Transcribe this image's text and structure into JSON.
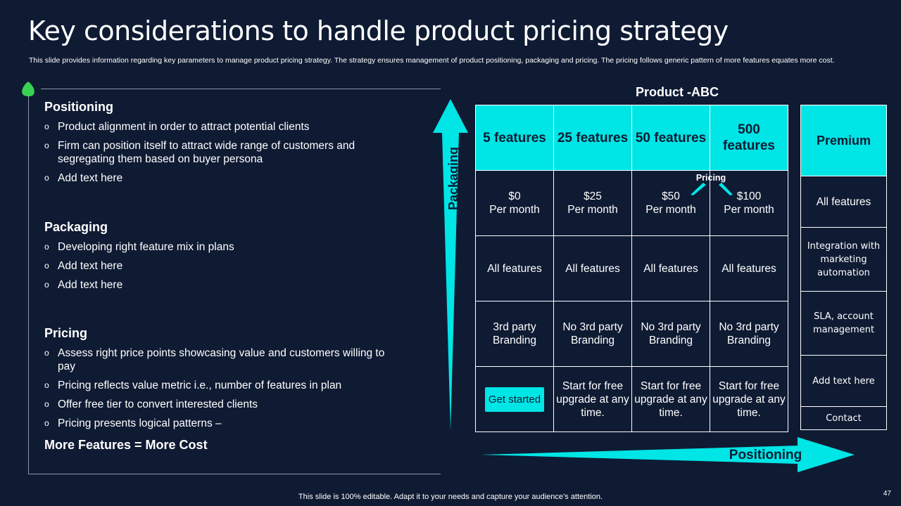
{
  "title": "Key considerations to handle product pricing strategy",
  "subtitle": "This slide provides information regarding key parameters to manage product pricing strategy. The strategy ensures management of product positioning, packaging and pricing. The pricing follows generic pattern of more features equates more cost.",
  "sections": [
    {
      "heading": "Positioning",
      "bullets": [
        "Product alignment in order to attract potential clients",
        "Firm can position itself to attract wide range of customers and segregating them based on buyer persona",
        "Add text here"
      ]
    },
    {
      "heading": "Packaging",
      "bullets": [
        "Developing right feature mix in plans",
        "Add text here",
        "Add text here"
      ]
    },
    {
      "heading": "Pricing",
      "bullets": [
        "Assess right price points showcasing value and customers willing to pay",
        "Pricing reflects value metric i.e., number of features in plan",
        "Offer free tier to convert interested clients",
        "Pricing presents logical patterns –"
      ]
    }
  ],
  "bullet_glyph": "o",
  "conclusion": "More Features = More Cost",
  "arrows": {
    "vertical_label": "Packaging",
    "horizontal_label": "Positioning"
  },
  "product_title": "Product -ABC",
  "pricing_note": "Pricing",
  "plans": [
    {
      "features": "5 features",
      "price": "$0",
      "period": "Per month",
      "includes": "All features",
      "branding": "3rd party Branding",
      "cta": "Get started"
    },
    {
      "features": "25 features",
      "price": "$25",
      "period": "Per month",
      "includes": "All features",
      "branding": "No 3rd party Branding",
      "cta": "Start for free upgrade at any time."
    },
    {
      "features": "50 features",
      "price": "$50",
      "period": "Per month",
      "includes": "All features",
      "branding": "No 3rd party Branding",
      "cta": "Start for free upgrade at any time."
    },
    {
      "features": "500 features",
      "price": "$100",
      "period": "Per month",
      "includes": "All features",
      "branding": "No 3rd party Branding",
      "cta": "Start for free upgrade at any time."
    }
  ],
  "premium": {
    "title": "Premium",
    "rows": [
      "All features",
      "Integration with marketing automation",
      "SLA, account management",
      "Add text here",
      "Contact"
    ]
  },
  "footer": "This slide is 100% editable. Adapt it to your needs and capture your audience’s attention.",
  "page_number": "47",
  "colors": {
    "background": "#0f1b33",
    "accent": "#00e5e5",
    "leaf": "#39d353"
  }
}
